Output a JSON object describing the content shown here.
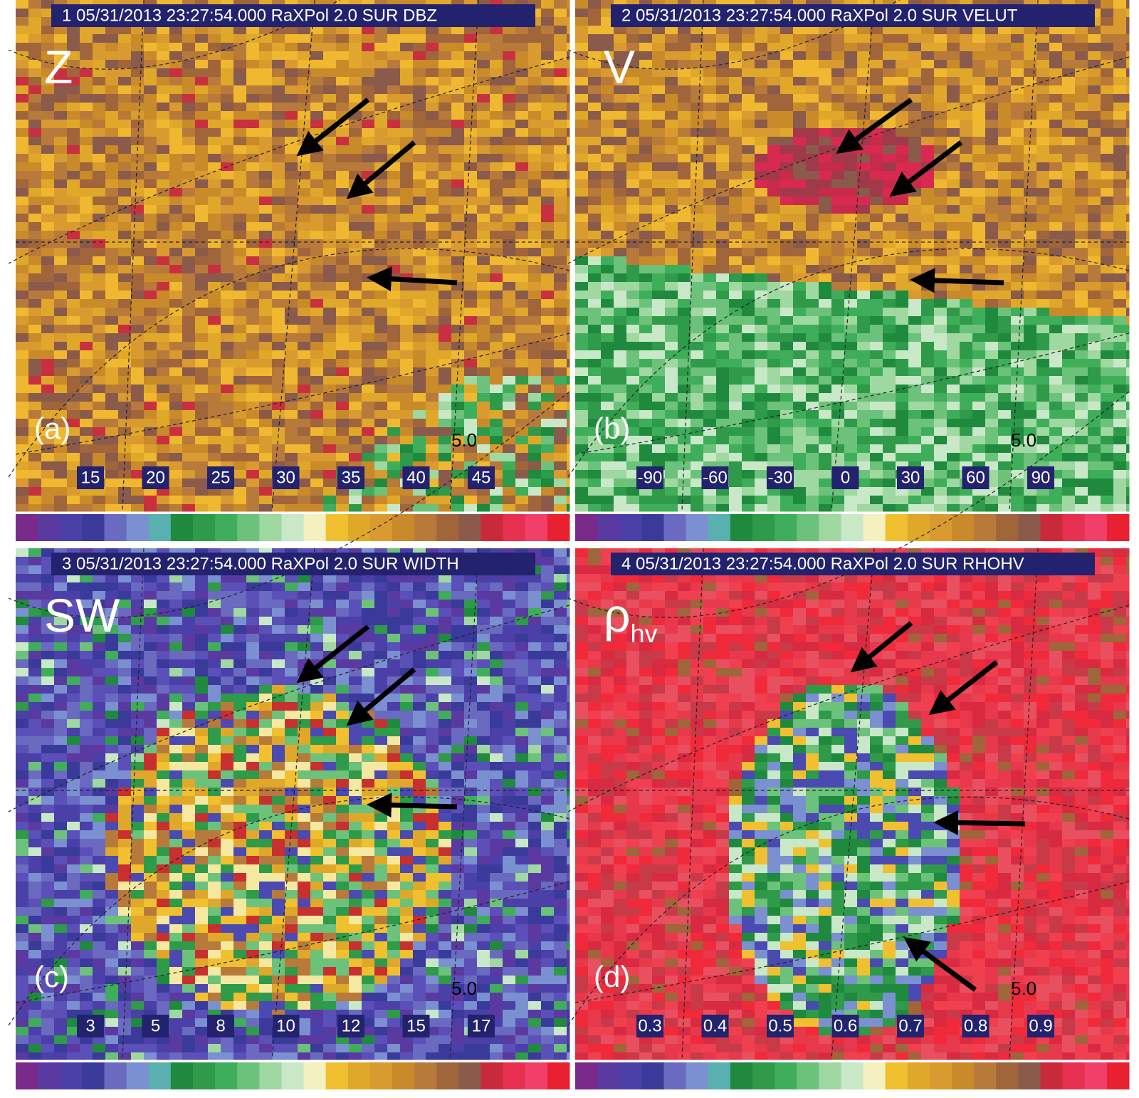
{
  "panels": [
    {
      "header": "1 05/31/2013 23:27:54.000 RaXPol 2.0 SUR DBZ",
      "field": "Z",
      "letter": "(a)",
      "range": "5.0",
      "scale": [
        "15",
        "20",
        "25",
        "30",
        "35",
        "40",
        "45"
      ]
    },
    {
      "header": "2 05/31/2013 23:27:54.000 RaXPol 2.0 SUR VELUT",
      "field": "V",
      "letter": "(b)",
      "range": "5.0",
      "scale": [
        "-90",
        "-60",
        "-30",
        "0",
        "30",
        "60",
        "90"
      ]
    },
    {
      "header": "3 05/31/2013 23:27:54.000 RaXPol 2.0 SUR WIDTH",
      "field": "SW",
      "letter": "(c)",
      "range": "5.0",
      "scale": [
        "3",
        "5",
        "8",
        "10",
        "12",
        "15",
        "17"
      ]
    },
    {
      "header": "4 05/31/2013 23:27:54.000 RaXPol 2.0 SUR RHOHV",
      "field": "ρ",
      "field_sub": "hv",
      "letter": "(d)",
      "range": "5.0",
      "scale": [
        "0.3",
        "0.4",
        "0.5",
        "0.6",
        "0.7",
        "0.8",
        "0.9"
      ]
    }
  ]
}
